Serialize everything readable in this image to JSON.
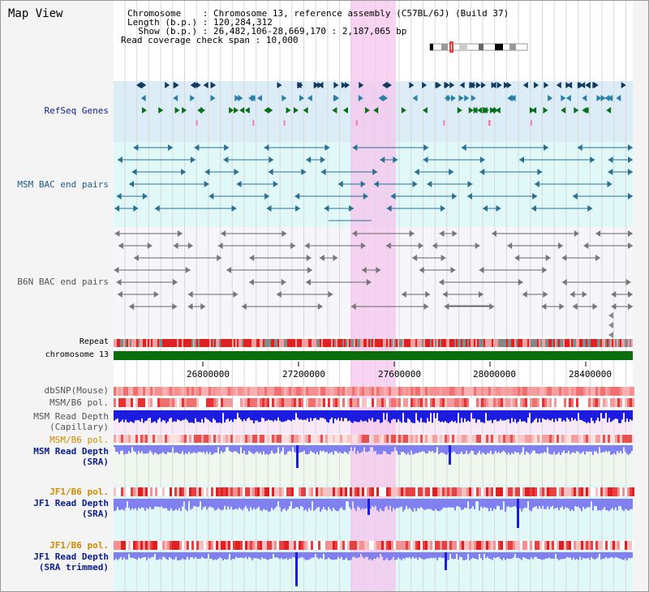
{
  "header": {
    "title": "Map View",
    "chromosome_label": "Chromosome",
    "chromosome_value": "Chromosome 13, reference assembly (C57BL/6J) (Build 37)",
    "length_label": "Length (b.p.)",
    "length_value": "120,284,312",
    "show_label": "Show (b.p.)",
    "show_value": "26,482,106-28,669,170 : 2,187,065 bp",
    "coverage_label": "Read coverage check span",
    "coverage_value": "10,000"
  },
  "tracks": {
    "refseq": "RefSeq Genes",
    "msm_bac": "MSM BAC end pairs",
    "b6n_bac": "B6N BAC end pairs",
    "repeat": "Repeat",
    "chromosome": "chromosome 13",
    "dbsnp": "dbSNP(Mouse)",
    "msm_pol": "MSM/B6 pol.",
    "msm_depth_cap_1": "MSM Read Depth",
    "msm_depth_cap_2": "(Capillary)",
    "msm_pol2": "MSM/B6 pol.",
    "msm_depth_sra_1": "MSM Read Depth",
    "msm_depth_sra_2": "(SRA)",
    "jf1_pol": "JF1/B6 pol.",
    "jf1_depth_1": "JF1 Read Depth",
    "jf1_depth_2": "(SRA)",
    "jf1_pol2": "JF1/B6 pol.",
    "jf1_trim_1": "JF1 Read Depth",
    "jf1_trim_2": "(SRA trimmed)"
  },
  "axis": {
    "ticks": [
      "26800000",
      "27200000",
      "27600000",
      "28000000",
      "28400000"
    ]
  },
  "colors": {
    "refseq_bg": "#dcedf8",
    "bac_bg": "#e0f8f8",
    "highlight": "#f5c6ee",
    "chrom_green": "#0a6e0a",
    "depth_blue": "#1c1ce0",
    "depth_light": "#8080f0"
  }
}
